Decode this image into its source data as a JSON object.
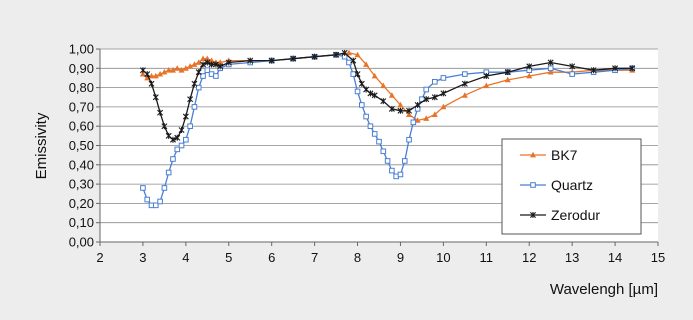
{
  "chart_data": {
    "type": "line",
    "xlabel": "Wavelengh [µm]",
    "ylabel": "Emissivity",
    "xlim": [
      2,
      15
    ],
    "ylim": [
      0,
      1
    ],
    "x_ticks": [
      "2",
      "3",
      "4",
      "5",
      "6",
      "7",
      "8",
      "9",
      "10",
      "11",
      "12",
      "13",
      "14",
      "15"
    ],
    "y_ticks": [
      "0,00",
      "0,10",
      "0,20",
      "0,30",
      "0,40",
      "0,50",
      "0,60",
      "0,70",
      "0,80",
      "0,90",
      "1,00"
    ],
    "grid": "horizontal",
    "legend_position": "right",
    "series": [
      {
        "name": "BK7",
        "color": "#e8742a",
        "marker": "triangle",
        "x": [
          3.0,
          3.1,
          3.2,
          3.3,
          3.4,
          3.5,
          3.6,
          3.7,
          3.8,
          3.9,
          4.0,
          4.1,
          4.2,
          4.3,
          4.4,
          4.5,
          4.6,
          4.7,
          4.8,
          5.0,
          5.5,
          6.0,
          6.5,
          7.0,
          7.5,
          7.8,
          8.0,
          8.2,
          8.4,
          8.6,
          8.8,
          9.0,
          9.2,
          9.4,
          9.6,
          9.8,
          10.0,
          10.5,
          11.0,
          11.5,
          12.0,
          12.5,
          13.0,
          13.5,
          14.0,
          14.4
        ],
        "y": [
          0.87,
          0.85,
          0.86,
          0.86,
          0.87,
          0.88,
          0.89,
          0.89,
          0.9,
          0.89,
          0.9,
          0.91,
          0.92,
          0.93,
          0.95,
          0.95,
          0.94,
          0.93,
          0.93,
          0.94,
          0.94,
          0.94,
          0.95,
          0.96,
          0.97,
          0.98,
          0.97,
          0.92,
          0.86,
          0.81,
          0.76,
          0.71,
          0.66,
          0.63,
          0.64,
          0.66,
          0.7,
          0.76,
          0.81,
          0.84,
          0.86,
          0.88,
          0.88,
          0.89,
          0.89,
          0.89
        ]
      },
      {
        "name": "Quartz",
        "color": "#4a7fd4",
        "marker": "square",
        "x": [
          3.0,
          3.1,
          3.2,
          3.3,
          3.4,
          3.5,
          3.6,
          3.7,
          3.8,
          3.9,
          4.0,
          4.1,
          4.2,
          4.3,
          4.4,
          4.5,
          4.6,
          4.7,
          4.8,
          5.0,
          5.5,
          6.0,
          6.5,
          7.0,
          7.5,
          7.7,
          7.8,
          7.9,
          8.0,
          8.1,
          8.2,
          8.3,
          8.4,
          8.5,
          8.6,
          8.7,
          8.8,
          8.9,
          9.0,
          9.1,
          9.2,
          9.3,
          9.4,
          9.5,
          9.6,
          9.8,
          10.0,
          10.5,
          11.0,
          11.5,
          12.0,
          12.5,
          13.0,
          13.5,
          14.0,
          14.4
        ],
        "y": [
          0.28,
          0.22,
          0.19,
          0.19,
          0.21,
          0.28,
          0.36,
          0.43,
          0.48,
          0.5,
          0.53,
          0.6,
          0.7,
          0.8,
          0.86,
          0.89,
          0.87,
          0.86,
          0.9,
          0.92,
          0.93,
          0.94,
          0.95,
          0.96,
          0.97,
          0.96,
          0.93,
          0.87,
          0.78,
          0.71,
          0.65,
          0.6,
          0.56,
          0.52,
          0.47,
          0.42,
          0.37,
          0.34,
          0.35,
          0.42,
          0.53,
          0.62,
          0.69,
          0.74,
          0.79,
          0.83,
          0.85,
          0.87,
          0.88,
          0.88,
          0.89,
          0.9,
          0.87,
          0.88,
          0.89,
          0.9
        ]
      },
      {
        "name": "Zerodur",
        "color": "#1a1a1a",
        "marker": "star",
        "x": [
          3.0,
          3.1,
          3.2,
          3.3,
          3.4,
          3.5,
          3.6,
          3.7,
          3.8,
          3.9,
          4.0,
          4.1,
          4.2,
          4.3,
          4.4,
          4.5,
          4.6,
          4.7,
          4.8,
          5.0,
          5.5,
          6.0,
          6.5,
          7.0,
          7.5,
          7.7,
          7.9,
          8.0,
          8.1,
          8.2,
          8.3,
          8.4,
          8.6,
          8.8,
          9.0,
          9.2,
          9.4,
          9.6,
          9.8,
          10.0,
          10.5,
          11.0,
          11.5,
          12.0,
          12.5,
          13.0,
          13.5,
          14.0,
          14.4
        ],
        "y": [
          0.89,
          0.87,
          0.82,
          0.75,
          0.67,
          0.6,
          0.55,
          0.53,
          0.54,
          0.58,
          0.65,
          0.74,
          0.82,
          0.88,
          0.92,
          0.93,
          0.92,
          0.92,
          0.91,
          0.93,
          0.94,
          0.94,
          0.95,
          0.96,
          0.97,
          0.98,
          0.94,
          0.87,
          0.82,
          0.79,
          0.77,
          0.76,
          0.73,
          0.69,
          0.68,
          0.68,
          0.71,
          0.74,
          0.75,
          0.77,
          0.82,
          0.86,
          0.88,
          0.91,
          0.93,
          0.91,
          0.89,
          0.9,
          0.9
        ]
      }
    ]
  }
}
